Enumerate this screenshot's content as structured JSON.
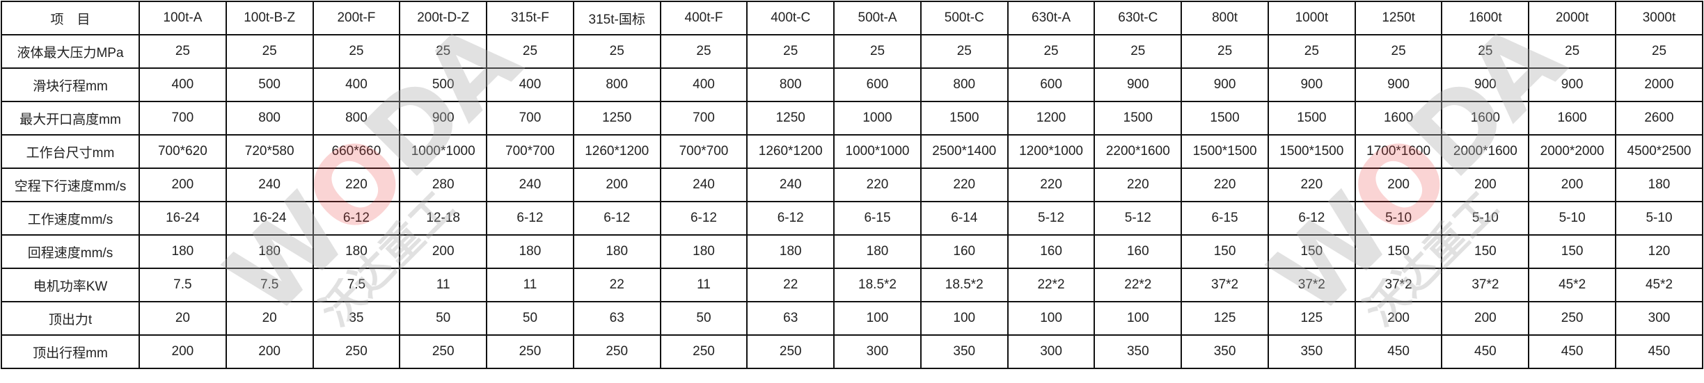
{
  "table": {
    "header": [
      "项　目",
      "100t-A",
      "100t-B-Z",
      "200t-F",
      "200t-D-Z",
      "315t-F",
      "315t-国标",
      "400t-F",
      "400t-C",
      "500t-A",
      "500t-C",
      "630t-A",
      "630t-C",
      "800t",
      "1000t",
      "1250t",
      "1600t",
      "2000t",
      "3000t"
    ],
    "rows": [
      [
        "液体最大压力MPa",
        "25",
        "25",
        "25",
        "25",
        "25",
        "25",
        "25",
        "25",
        "25",
        "25",
        "25",
        "25",
        "25",
        "25",
        "25",
        "25",
        "25",
        "25"
      ],
      [
        "滑块行程mm",
        "400",
        "500",
        "400",
        "500",
        "400",
        "800",
        "400",
        "800",
        "600",
        "800",
        "600",
        "900",
        "900",
        "900",
        "900",
        "900",
        "900",
        "2000"
      ],
      [
        "最大开口高度mm",
        "700",
        "800",
        "800",
        "900",
        "700",
        "1250",
        "700",
        "1250",
        "1000",
        "1500",
        "1200",
        "1500",
        "1500",
        "1500",
        "1600",
        "1600",
        "1600",
        "2600"
      ],
      [
        "工作台尺寸mm",
        "700*620",
        "720*580",
        "660*660",
        "1000*1000",
        "700*700",
        "1260*1200",
        "700*700",
        "1260*1200",
        "1000*1000",
        "2500*1400",
        "1200*1000",
        "2200*1600",
        "1500*1500",
        "1500*1500",
        "1700*1600",
        "2000*1600",
        "2000*2000",
        "4500*2500"
      ],
      [
        "空程下行速度mm/s",
        "200",
        "240",
        "220",
        "280",
        "240",
        "200",
        "240",
        "240",
        "220",
        "220",
        "220",
        "220",
        "220",
        "220",
        "200",
        "200",
        "200",
        "180"
      ],
      [
        "工作速度mm/s",
        "16-24",
        "16-24",
        "6-12",
        "12-18",
        "6-12",
        "6-12",
        "6-12",
        "6-12",
        "6-15",
        "6-14",
        "5-12",
        "5-12",
        "6-15",
        "6-12",
        "5-10",
        "5-10",
        "5-10",
        "5-10"
      ],
      [
        "回程速度mm/s",
        "180",
        "180",
        "180",
        "200",
        "180",
        "180",
        "180",
        "180",
        "180",
        "160",
        "160",
        "160",
        "150",
        "150",
        "150",
        "150",
        "150",
        "120"
      ],
      [
        "电机功率KW",
        "7.5",
        "7.5",
        "7.5",
        "11",
        "11",
        "22",
        "11",
        "22",
        "18.5*2",
        "18.5*2",
        "22*2",
        "22*2",
        "37*2",
        "37*2",
        "37*2",
        "37*2",
        "45*2",
        "45*2"
      ],
      [
        "顶出力t",
        "20",
        "20",
        "35",
        "50",
        "50",
        "63",
        "50",
        "63",
        "100",
        "100",
        "100",
        "100",
        "125",
        "125",
        "200",
        "200",
        "250",
        "300"
      ],
      [
        "顶出行程mm",
        "200",
        "200",
        "250",
        "250",
        "250",
        "250",
        "250",
        "250",
        "300",
        "350",
        "300",
        "350",
        "350",
        "350",
        "450",
        "450",
        "450",
        "450"
      ]
    ]
  },
  "watermark": {
    "logo": "WODA",
    "logo_o": "O",
    "cn": "沃达重工",
    "registered": "®"
  }
}
